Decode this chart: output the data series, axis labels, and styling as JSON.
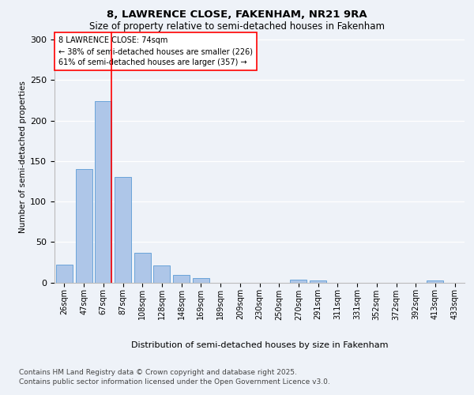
{
  "title1": "8, LAWRENCE CLOSE, FAKENHAM, NR21 9RA",
  "title2": "Size of property relative to semi-detached houses in Fakenham",
  "xlabel": "Distribution of semi-detached houses by size in Fakenham",
  "ylabel": "Number of semi-detached properties",
  "categories": [
    "26sqm",
    "47sqm",
    "67sqm",
    "87sqm",
    "108sqm",
    "128sqm",
    "148sqm",
    "169sqm",
    "189sqm",
    "209sqm",
    "230sqm",
    "250sqm",
    "270sqm",
    "291sqm",
    "311sqm",
    "331sqm",
    "352sqm",
    "372sqm",
    "392sqm",
    "413sqm",
    "433sqm"
  ],
  "values": [
    22,
    140,
    224,
    130,
    37,
    21,
    9,
    5,
    0,
    0,
    0,
    0,
    3,
    2,
    0,
    0,
    0,
    0,
    0,
    2,
    0
  ],
  "bar_color": "#aec6e8",
  "bar_edge_color": "#5b9bd5",
  "red_line_index": 2,
  "annotation_title": "8 LAWRENCE CLOSE: 74sqm",
  "annotation_line1": "← 38% of semi-detached houses are smaller (226)",
  "annotation_line2": "61% of semi-detached houses are larger (357) →",
  "footer1": "Contains HM Land Registry data © Crown copyright and database right 2025.",
  "footer2": "Contains public sector information licensed under the Open Government Licence v3.0.",
  "ylim": [
    0,
    310
  ],
  "bg_color": "#eef2f8",
  "plot_bg_color": "#eef2f8"
}
